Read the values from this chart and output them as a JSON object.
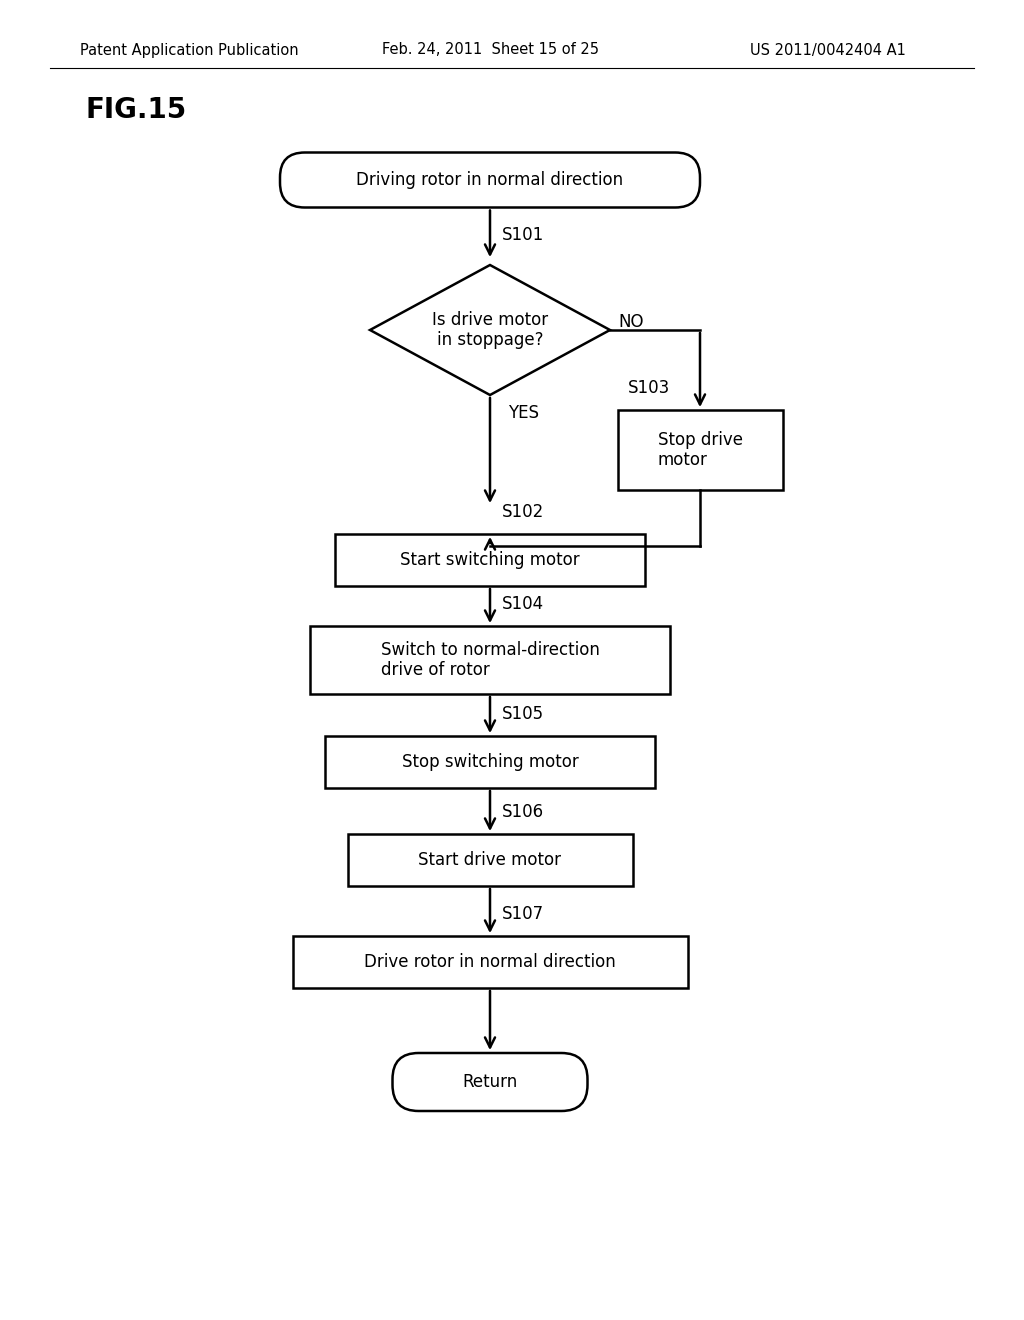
{
  "background_color": "#ffffff",
  "header_left": "Patent Application Publication",
  "header_mid": "Feb. 24, 2011  Sheet 15 of 25",
  "header_right": "US 2011/0042404 A1",
  "fig_label": "FIG.15",
  "font_size": 12,
  "label_font_size": 12,
  "header_font_size": 10.5,
  "fig_label_font_size": 20,
  "start_text": "Driving rotor in normal direction",
  "diamond_text": "Is drive motor\nin stoppage?",
  "diamond_label": "S101",
  "no_label": "NO",
  "yes_label": "YES",
  "s103_text": "Stop drive\nmotor",
  "s103_label": "S103",
  "s102_text": "Start switching motor",
  "s102_label": "S102",
  "s104_text": "Switch to normal-direction\ndrive of rotor",
  "s104_label": "S104",
  "s105_text": "Stop switching motor",
  "s105_label": "S105",
  "s106_text": "Start drive motor",
  "s106_label": "S106",
  "s107_text": "Drive rotor in normal direction",
  "s107_label": "S107",
  "return_text": "Return"
}
